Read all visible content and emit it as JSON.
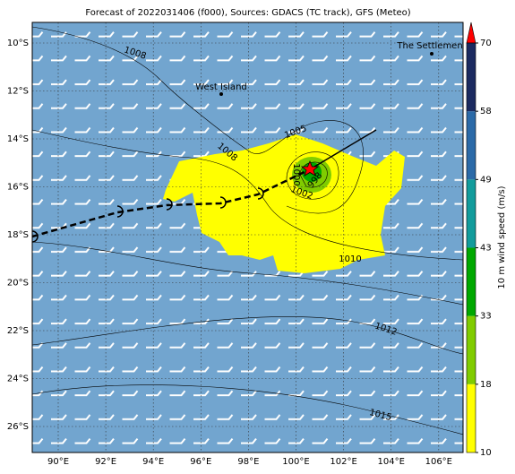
{
  "title": "Forecast of 2022031406 (f000), Sources: GDACS (TC track), GFS (Meteo)",
  "map": {
    "lon_labels": [
      "90°E",
      "92°E",
      "94°E",
      "96°E",
      "98°E",
      "100°E",
      "102°E",
      "104°E",
      "106°E"
    ],
    "lat_labels": [
      "10°S",
      "12°S",
      "14°S",
      "16°S",
      "18°S",
      "20°S",
      "22°S",
      "24°S",
      "26°S"
    ],
    "places": [
      "West Island",
      "The Settlement"
    ],
    "isobar_labels": [
      "1008",
      "1005",
      "1008",
      "1000",
      "1002",
      "998",
      "1010",
      "1012",
      "1015"
    ]
  },
  "colorbar": {
    "label": "10 m wind speed (m/s)",
    "ticks": [
      10,
      18,
      33,
      43,
      49,
      58,
      70
    ],
    "colors": [
      "#ffff00",
      "#80cc00",
      "#00a800",
      "#129c9c",
      "#2b6aa8",
      "#1b2a60"
    ],
    "extend_color": "#ff0000"
  }
}
